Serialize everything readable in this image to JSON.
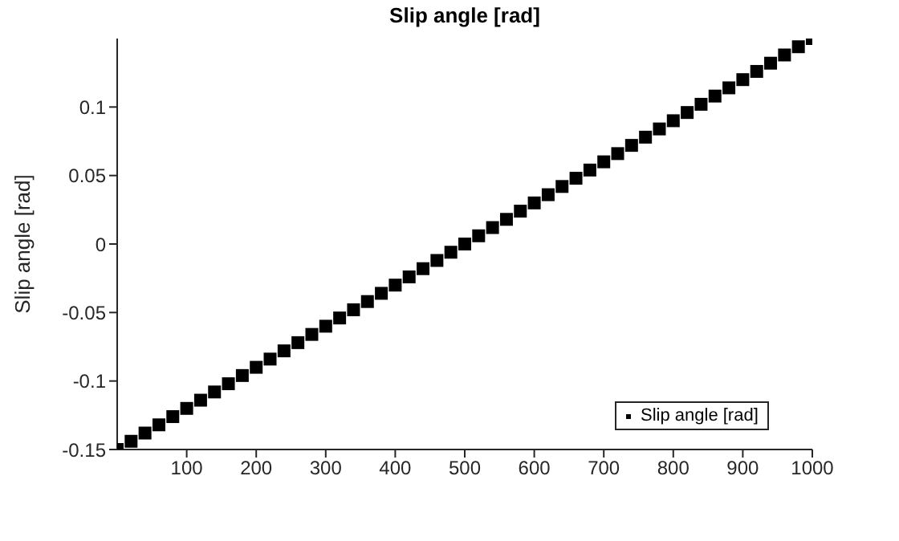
{
  "chart_data": {
    "type": "scatter",
    "title": "Slip angle [rad]",
    "ylabel": "Slip angle [rad]",
    "x": [
      0,
      20,
      40,
      60,
      80,
      100,
      120,
      140,
      160,
      180,
      200,
      220,
      240,
      260,
      280,
      300,
      320,
      340,
      360,
      380,
      400,
      420,
      440,
      460,
      480,
      500,
      520,
      540,
      560,
      580,
      600,
      620,
      640,
      660,
      680,
      700,
      720,
      740,
      760,
      780,
      800,
      820,
      840,
      860,
      880,
      900,
      920,
      940,
      960,
      980,
      1000
    ],
    "series": [
      {
        "name": "Slip angle [rad]",
        "color": "#000000",
        "values": [
          -0.15,
          -0.144,
          -0.138,
          -0.132,
          -0.126,
          -0.12,
          -0.114,
          -0.108,
          -0.102,
          -0.096,
          -0.09,
          -0.084,
          -0.078,
          -0.072,
          -0.066,
          -0.06,
          -0.054,
          -0.048,
          -0.042,
          -0.036,
          -0.03,
          -0.024,
          -0.018,
          -0.012,
          -0.006,
          0,
          0.006,
          0.012,
          0.018,
          0.024,
          0.03,
          0.036,
          0.042,
          0.048,
          0.054,
          0.06,
          0.066,
          0.072,
          0.078,
          0.084,
          0.09,
          0.096,
          0.102,
          0.108,
          0.114,
          0.12,
          0.126,
          0.132,
          0.138,
          0.144,
          0.15
        ]
      }
    ],
    "xlim": [
      0,
      1000
    ],
    "xticks": [
      100,
      200,
      300,
      400,
      500,
      600,
      700,
      800,
      900,
      1000
    ],
    "ylim": [
      -0.15,
      0.15
    ],
    "yticks": [
      -0.15,
      -0.1,
      -0.05,
      0,
      0.05,
      0.1
    ],
    "grid": false,
    "legend": "bottom right",
    "marker": "square"
  }
}
